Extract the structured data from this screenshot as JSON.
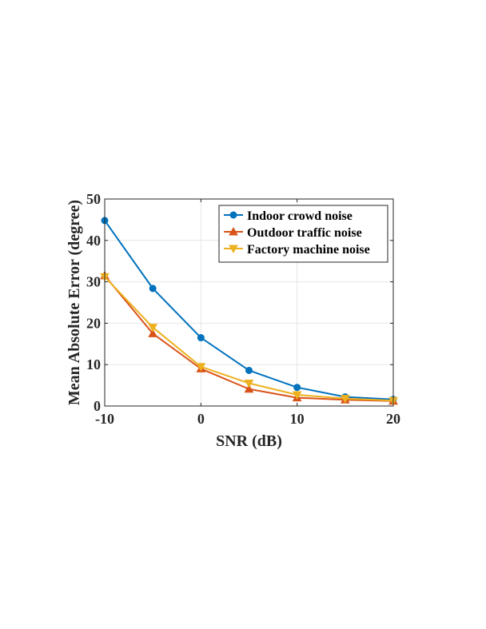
{
  "chart_data": {
    "type": "line",
    "title": "",
    "xlabel": "SNR (dB)",
    "ylabel": "Mean Absolute Error (degree)",
    "xlim": [
      -10,
      20
    ],
    "ylim": [
      0,
      50
    ],
    "x": [
      -10,
      -5,
      0,
      5,
      10,
      15,
      20
    ],
    "x_ticks": [
      -10,
      0,
      10,
      20
    ],
    "y_ticks": [
      0,
      10,
      20,
      30,
      40,
      50
    ],
    "grid": true,
    "legend_position": "top-right",
    "series": [
      {
        "name": "Indoor crowd noise",
        "color": "#0072BD",
        "marker": "circle",
        "values": [
          44.8,
          28.4,
          16.5,
          8.6,
          4.5,
          2.2,
          1.6
        ]
      },
      {
        "name": "Outdoor traffic noise",
        "color": "#D95319",
        "marker": "triangle-up",
        "values": [
          31.5,
          17.5,
          9.0,
          4.1,
          2.0,
          1.5,
          1.2
        ]
      },
      {
        "name": "Factory machine noise",
        "color": "#EDB120",
        "marker": "triangle-down",
        "values": [
          31.2,
          19.0,
          9.5,
          5.5,
          2.7,
          1.8,
          1.3
        ]
      }
    ]
  }
}
